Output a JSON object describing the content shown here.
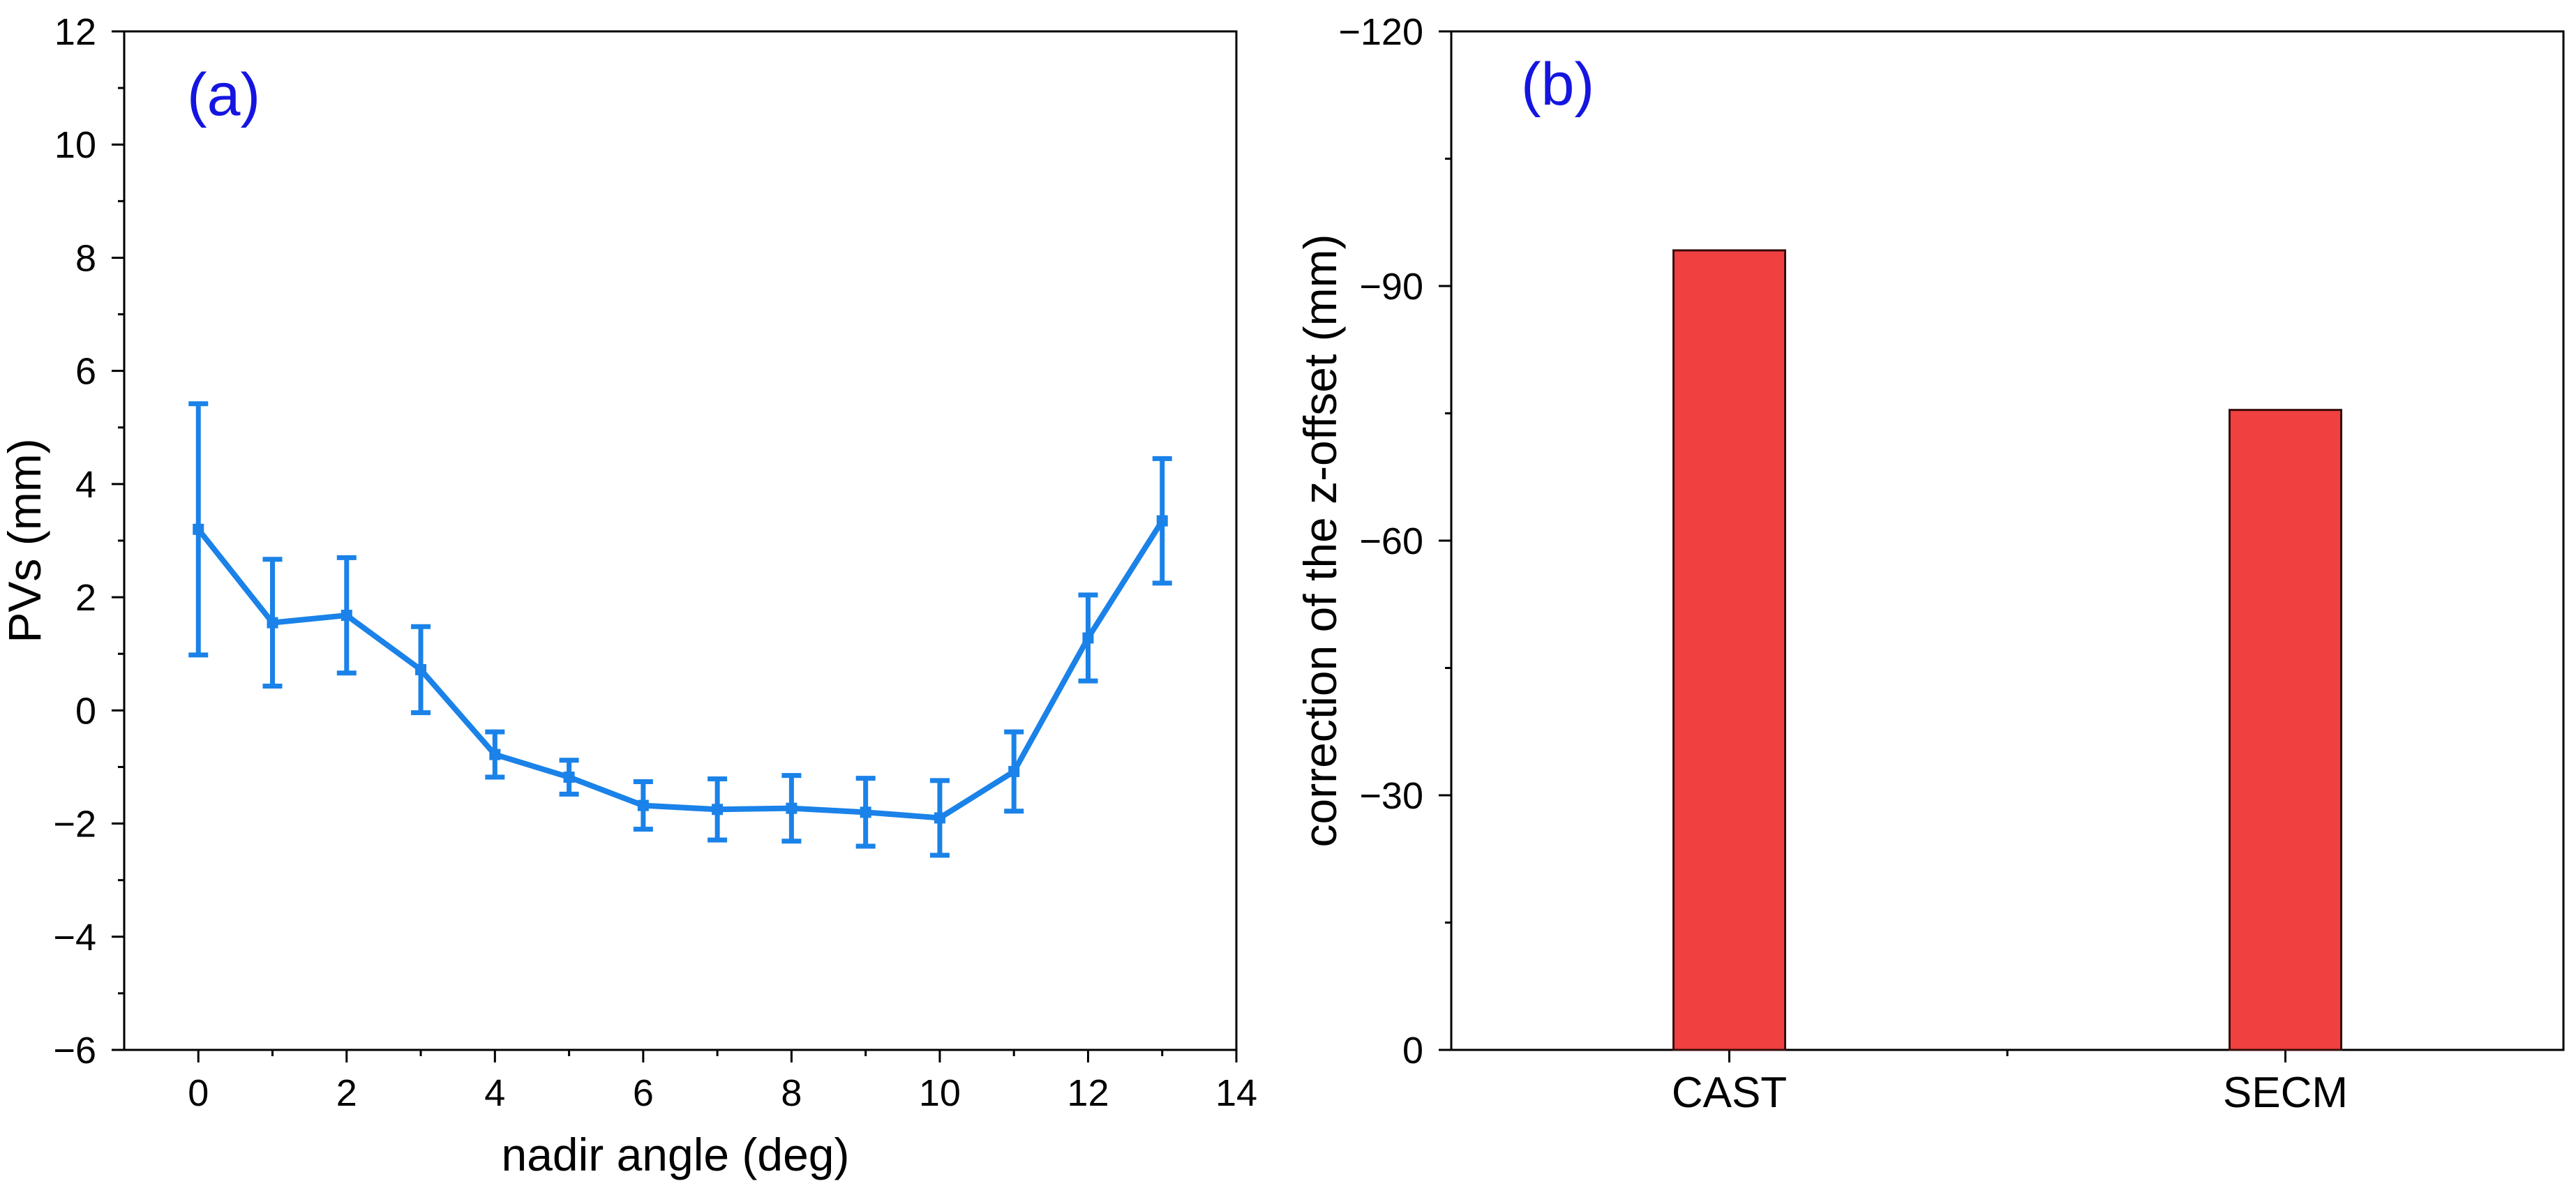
{
  "chart_data": [
    {
      "panel_label": "(a)",
      "type": "line",
      "xlabel": "nadir angle (deg)",
      "ylabel": "PVs (mm)",
      "xlim": [
        -1,
        14
      ],
      "ylim": [
        -6,
        12
      ],
      "xticks": [
        0,
        2,
        4,
        6,
        8,
        10,
        12,
        14
      ],
      "yticks": [
        -6,
        -4,
        -2,
        0,
        2,
        4,
        6,
        8,
        10,
        12
      ],
      "color": "#1a82e8",
      "panel_label_color": "#1515e0",
      "grid": false,
      "series": [
        {
          "name": "PVs",
          "x": [
            0,
            1,
            2,
            3,
            4,
            5,
            6,
            7,
            8,
            9,
            10,
            11,
            12,
            13
          ],
          "y": [
            3.2,
            1.55,
            1.68,
            0.72,
            -0.78,
            -1.18,
            -1.68,
            -1.75,
            -1.73,
            -1.8,
            -1.9,
            -1.08,
            1.28,
            3.35
          ],
          "err": [
            2.22,
            1.12,
            1.02,
            0.76,
            0.4,
            0.3,
            0.42,
            0.54,
            0.58,
            0.6,
            0.66,
            0.7,
            0.76,
            1.1
          ]
        }
      ]
    },
    {
      "panel_label": "(b)",
      "type": "bar",
      "xlabel": "",
      "ylabel": "correction of the z-offset (mm)",
      "categories": [
        "CAST",
        "SECM"
      ],
      "values": [
        -94.2,
        -75.4
      ],
      "ylim": [
        0,
        -120
      ],
      "yticks": [
        0,
        -30,
        -60,
        -90,
        -120
      ],
      "y_inverted": true,
      "color": "#f04040",
      "edge_color": "#3a0c0c",
      "panel_label_color": "#1515e0",
      "grid": false
    }
  ]
}
